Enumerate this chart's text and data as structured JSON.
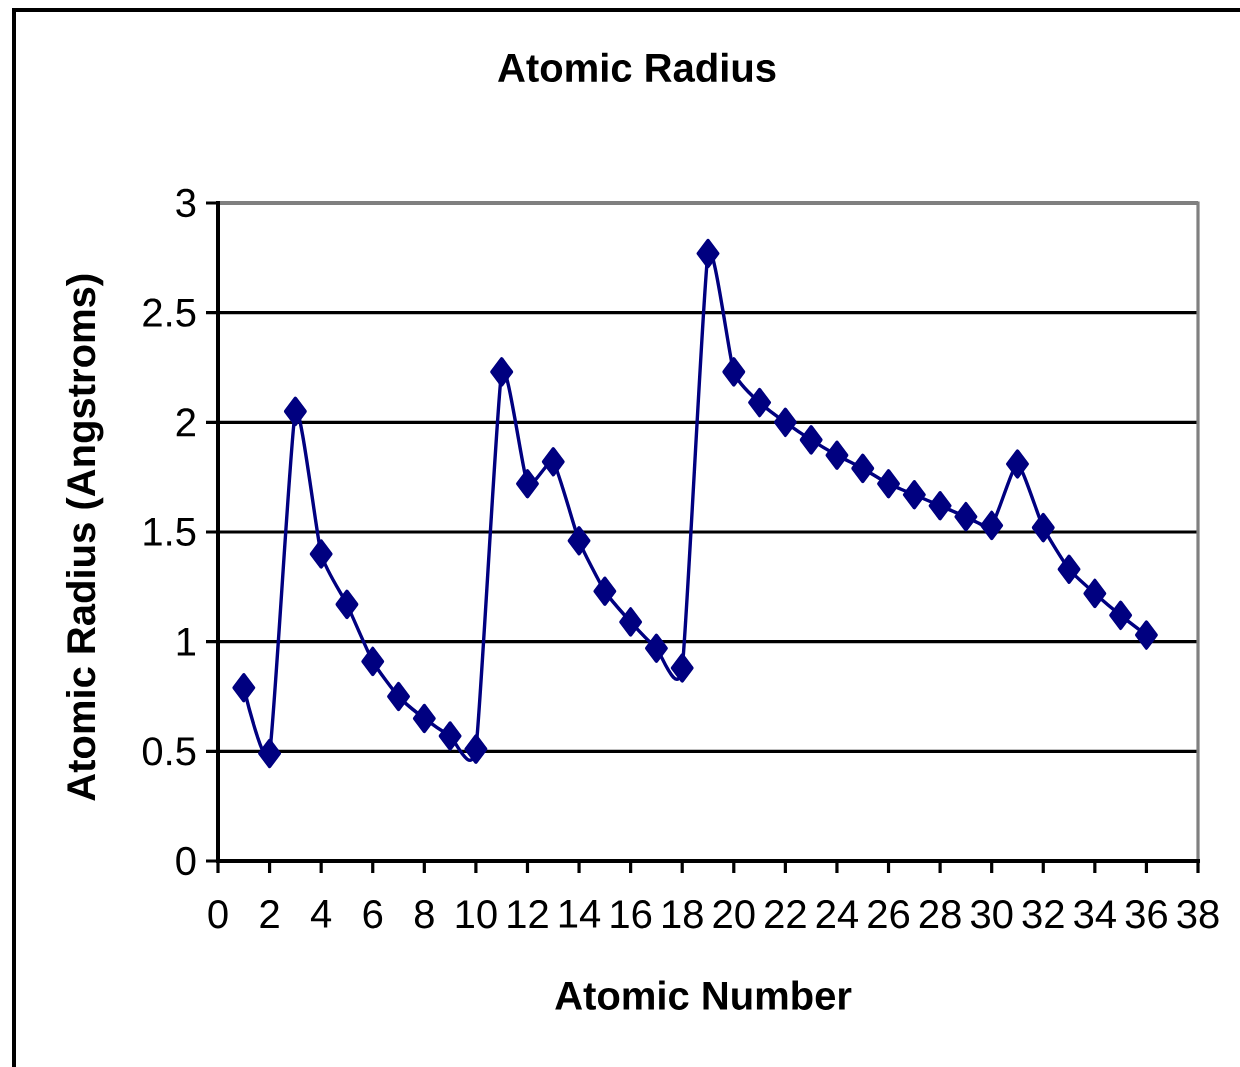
{
  "chart_data": {
    "type": "line",
    "title": "Atomic Radius",
    "xlabel": "Atomic Number",
    "ylabel": "Atomic Radius (Angstroms)",
    "x": [
      1,
      2,
      3,
      4,
      5,
      6,
      7,
      8,
      9,
      10,
      11,
      12,
      13,
      14,
      15,
      16,
      17,
      18,
      19,
      20,
      21,
      22,
      23,
      24,
      25,
      26,
      27,
      28,
      29,
      30,
      31,
      32,
      33,
      34,
      35,
      36
    ],
    "series": [
      {
        "color": "#000080",
        "values": [
          0.79,
          0.49,
          2.05,
          1.4,
          1.17,
          0.91,
          0.75,
          0.65,
          0.57,
          0.51,
          2.23,
          1.72,
          1.82,
          1.46,
          1.23,
          1.09,
          0.97,
          0.88,
          2.77,
          2.23,
          2.09,
          2.0,
          1.92,
          1.85,
          1.79,
          1.72,
          1.67,
          1.62,
          1.57,
          1.53,
          1.81,
          1.52,
          1.33,
          1.22,
          1.12,
          1.03
        ]
      }
    ],
    "xlim": [
      0,
      38
    ],
    "xticks": [
      0,
      2,
      4,
      6,
      8,
      10,
      12,
      14,
      16,
      18,
      20,
      22,
      24,
      26,
      28,
      30,
      32,
      34,
      36,
      38
    ],
    "ylim": [
      0,
      3
    ],
    "yticks": [
      0,
      0.5,
      1,
      1.5,
      2,
      2.5,
      3
    ],
    "grid": "y",
    "marker": "diamond",
    "line_style": "solid"
  }
}
